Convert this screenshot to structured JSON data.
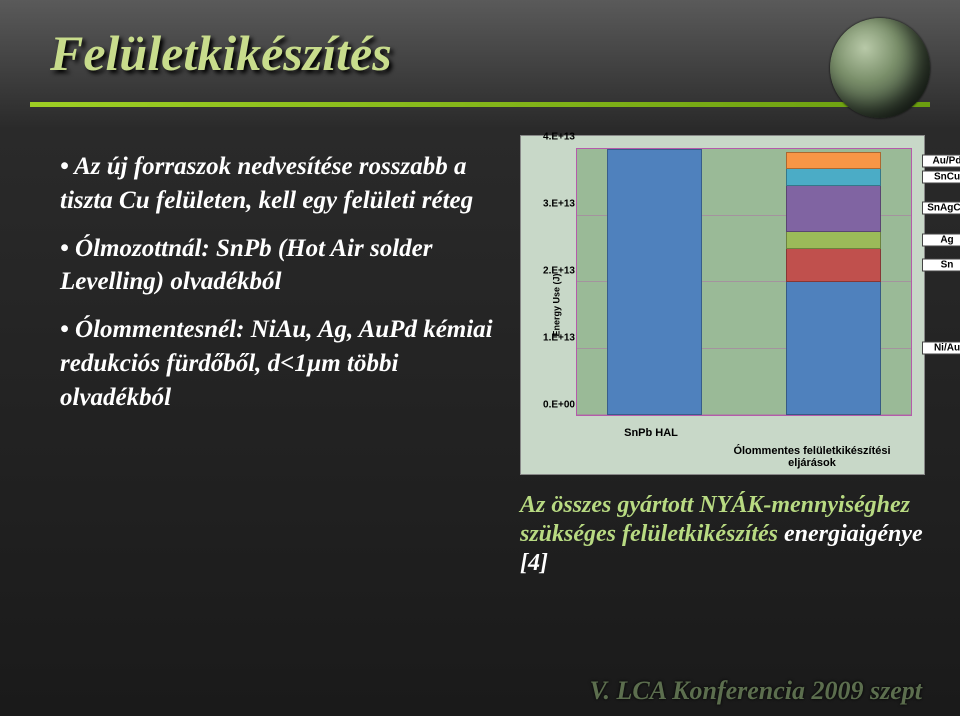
{
  "title": "Felületkikészítés",
  "bullets": [
    "Az új forraszok nedvesítése rosszabb a tiszta Cu felületen, kell egy felületi réteg",
    "Ólmozottnál: SnPb (Hot Air solder Levelling) olvadékból",
    "Ólommentesnél: NiAu, Ag, AuPd kémiai redukciós fürdőből, d<1µm többi olvadékból"
  ],
  "caption_green": "Az összes gyártott NYÁK-mennyiséghez szükséges felületkikészítés ",
  "caption_white": "energiaigénye [4]",
  "footer": "V. LCA Konferencia 2009 szept",
  "chart": {
    "ylabel": "Energy Use (J)",
    "yticks": [
      "0.E+00",
      "1.E+13",
      "2.E+13",
      "3.E+13",
      "4.E+13"
    ],
    "ymax": 40000000000000.0,
    "xcat1": "SnPb HAL",
    "xcat2": "Ólommentes felületkikészítési eljárások",
    "bar1_value": 40000000000000.0,
    "bar1_color": "#4f81bd",
    "segments": [
      {
        "label": "Ni/Au",
        "value": 20000000000000.0,
        "color": "#4f81bd"
      },
      {
        "label": "Sn",
        "value": 5000000000000.0,
        "color": "#c0504d"
      },
      {
        "label": "Ag",
        "value": 2500000000000.0,
        "color": "#9bbb59"
      },
      {
        "label": "SnAgCu",
        "value": 7000000000000.0,
        "color": "#8064a2"
      },
      {
        "label": "SnCu",
        "value": 2500000000000.0,
        "color": "#4bacc6"
      },
      {
        "label": "Au/Pd",
        "value": 2500000000000.0,
        "color": "#f79646"
      }
    ]
  }
}
